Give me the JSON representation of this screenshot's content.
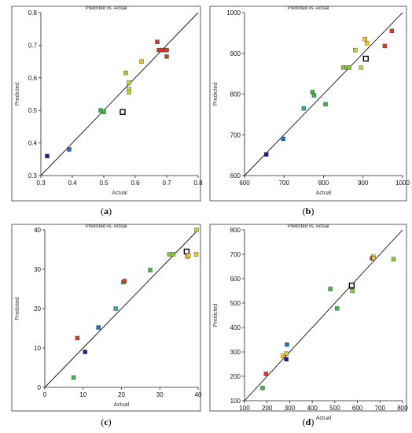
{
  "chart_data": [
    {
      "panel": "(a)",
      "panel_letter": "a",
      "type": "scatter",
      "title": "Predicted vs. Actual",
      "xlabel": "Actual",
      "ylabel": "Predicted",
      "xlim": [
        0.3,
        0.8
      ],
      "ylim": [
        0.3,
        0.8
      ],
      "xticks": [
        "0.3",
        "0.4",
        "0.5",
        "0.6",
        "0.7",
        "0.8"
      ],
      "yticks": [
        "0.3",
        "0.4",
        "0.5",
        "0.6",
        "0.7",
        "0.8"
      ],
      "line": [
        [
          0.3,
          0.3
        ],
        [
          0.8,
          0.8
        ]
      ],
      "points": [
        {
          "x": 0.32,
          "y": 0.36,
          "color": "#1a1a8c"
        },
        {
          "x": 0.39,
          "y": 0.38,
          "color": "#2a6fb5"
        },
        {
          "x": 0.49,
          "y": 0.5,
          "color": "#3cb54a"
        },
        {
          "x": 0.5,
          "y": 0.495,
          "color": "#3cb54a"
        },
        {
          "x": 0.56,
          "y": 0.495,
          "color": "#ffffff",
          "hollow": true
        },
        {
          "x": 0.57,
          "y": 0.615,
          "color": "#a6cf3a"
        },
        {
          "x": 0.58,
          "y": 0.585,
          "color": "#c8d23a"
        },
        {
          "x": 0.58,
          "y": 0.565,
          "color": "#c8d23a"
        },
        {
          "x": 0.58,
          "y": 0.555,
          "color": "#c8d23a"
        },
        {
          "x": 0.62,
          "y": 0.65,
          "color": "#e8c832"
        },
        {
          "x": 0.67,
          "y": 0.71,
          "color": "#d23c2a"
        },
        {
          "x": 0.675,
          "y": 0.685,
          "color": "#d23c2a"
        },
        {
          "x": 0.685,
          "y": 0.685,
          "color": "#d23c2a"
        },
        {
          "x": 0.695,
          "y": 0.685,
          "color": "#d23c2a"
        },
        {
          "x": 0.7,
          "y": 0.685,
          "color": "#d23c2a"
        },
        {
          "x": 0.7,
          "y": 0.665,
          "color": "#d23c2a"
        }
      ]
    },
    {
      "panel": "(b)",
      "panel_letter": "b",
      "type": "scatter",
      "title": "Predicted vs. Actual",
      "xlabel": "Actual",
      "ylabel": "Predicted",
      "xlim": [
        600,
        1000
      ],
      "ylim": [
        600,
        1000
      ],
      "xticks": [
        "600",
        "700",
        "800",
        "900",
        "1000"
      ],
      "yticks": [
        "600",
        "700",
        "800",
        "900",
        "1000"
      ],
      "line": [
        [
          600,
          600
        ],
        [
          1000,
          1000
        ]
      ],
      "points": [
        {
          "x": 655,
          "y": 652,
          "color": "#1a1a8c"
        },
        {
          "x": 698,
          "y": 690,
          "color": "#2a6fb5"
        },
        {
          "x": 750,
          "y": 765,
          "color": "#2ab5a0"
        },
        {
          "x": 772,
          "y": 805,
          "color": "#3cb54a"
        },
        {
          "x": 776,
          "y": 797,
          "color": "#3cb54a"
        },
        {
          "x": 805,
          "y": 775,
          "color": "#3cb54a"
        },
        {
          "x": 850,
          "y": 865,
          "color": "#8cc83c"
        },
        {
          "x": 858,
          "y": 865,
          "color": "#8cc83c"
        },
        {
          "x": 865,
          "y": 865,
          "color": "#8cc83c"
        },
        {
          "x": 880,
          "y": 908,
          "color": "#c8d23a"
        },
        {
          "x": 895,
          "y": 865,
          "color": "#c8d23a"
        },
        {
          "x": 905,
          "y": 935,
          "color": "#e8c832"
        },
        {
          "x": 910,
          "y": 925,
          "color": "#e8c832"
        },
        {
          "x": 907,
          "y": 887,
          "color": "#ffffff",
          "hollow": true
        },
        {
          "x": 955,
          "y": 918,
          "color": "#d23c2a"
        },
        {
          "x": 973,
          "y": 955,
          "color": "#d23c2a"
        }
      ]
    },
    {
      "panel": "(c)",
      "panel_letter": "c",
      "type": "scatter",
      "title": "Predicted vs. Actual",
      "xlabel": "Actual",
      "ylabel": "Predicted",
      "xlim": [
        0,
        40
      ],
      "ylim": [
        0,
        40
      ],
      "xticks": [
        "0",
        "10",
        "20",
        "30",
        "40"
      ],
      "yticks": [
        "0",
        "10",
        "20",
        "30",
        "40"
      ],
      "line": [
        [
          0,
          0
        ],
        [
          40,
          40
        ]
      ],
      "points": [
        {
          "x": 7.5,
          "y": 2.5,
          "color": "#3cb54a"
        },
        {
          "x": 8.5,
          "y": 12.5,
          "color": "#d23c2a"
        },
        {
          "x": 10.5,
          "y": 9,
          "color": "#1a1a8c"
        },
        {
          "x": 14,
          "y": 15.2,
          "color": "#2a6fb5"
        },
        {
          "x": 18.5,
          "y": 20,
          "color": "#2ab5a0"
        },
        {
          "x": 20.5,
          "y": 26.7,
          "color": "#3cb54a"
        },
        {
          "x": 20.8,
          "y": 27,
          "color": "#d23c2a"
        },
        {
          "x": 27.5,
          "y": 29.8,
          "color": "#3cb54a"
        },
        {
          "x": 32.5,
          "y": 33.8,
          "color": "#8cc83c"
        },
        {
          "x": 33.5,
          "y": 33.8,
          "color": "#8cc83c"
        },
        {
          "x": 37,
          "y": 34.5,
          "color": "#ffffff",
          "hollow": true
        },
        {
          "x": 37.2,
          "y": 33.2,
          "color": "#e8c832"
        },
        {
          "x": 37.5,
          "y": 33.5,
          "color": "#e8c832"
        },
        {
          "x": 39.5,
          "y": 33.8,
          "color": "#e8c832"
        },
        {
          "x": 39.6,
          "y": 40,
          "color": "#c8d23a"
        }
      ]
    },
    {
      "panel": "(d)",
      "panel_letter": "d",
      "type": "scatter",
      "title": "Predicted vs. Actual",
      "xlabel": "Actual",
      "ylabel": "Predicted",
      "xlim": [
        100,
        800
      ],
      "ylim": [
        100,
        800
      ],
      "xticks": [
        "100",
        "200",
        "300",
        "400",
        "500",
        "600",
        "700",
        "800"
      ],
      "yticks": [
        "100",
        "200",
        "300",
        "400",
        "500",
        "600",
        "700",
        "800"
      ],
      "line": [
        [
          100,
          100
        ],
        [
          800,
          800
        ]
      ],
      "points": [
        {
          "x": 180,
          "y": 152,
          "color": "#3cb54a"
        },
        {
          "x": 195,
          "y": 210,
          "color": "#d23c2a"
        },
        {
          "x": 270,
          "y": 283,
          "color": "#e8c832"
        },
        {
          "x": 285,
          "y": 270,
          "color": "#1a1a8c"
        },
        {
          "x": 285,
          "y": 293,
          "color": "#e8c832"
        },
        {
          "x": 288,
          "y": 330,
          "color": "#2a6fb5"
        },
        {
          "x": 480,
          "y": 558,
          "color": "#3cb54a"
        },
        {
          "x": 510,
          "y": 478,
          "color": "#3cb54a"
        },
        {
          "x": 575,
          "y": 565,
          "color": "#2ab5a0"
        },
        {
          "x": 578,
          "y": 550,
          "color": "#8cc83c"
        },
        {
          "x": 575,
          "y": 572,
          "color": "#ffffff",
          "hollow": true
        },
        {
          "x": 665,
          "y": 683,
          "color": "#d23c2a"
        },
        {
          "x": 670,
          "y": 690,
          "color": "#e8c832"
        },
        {
          "x": 672,
          "y": 685,
          "color": "#e8c832"
        },
        {
          "x": 760,
          "y": 680,
          "color": "#8cc83c"
        }
      ]
    }
  ]
}
